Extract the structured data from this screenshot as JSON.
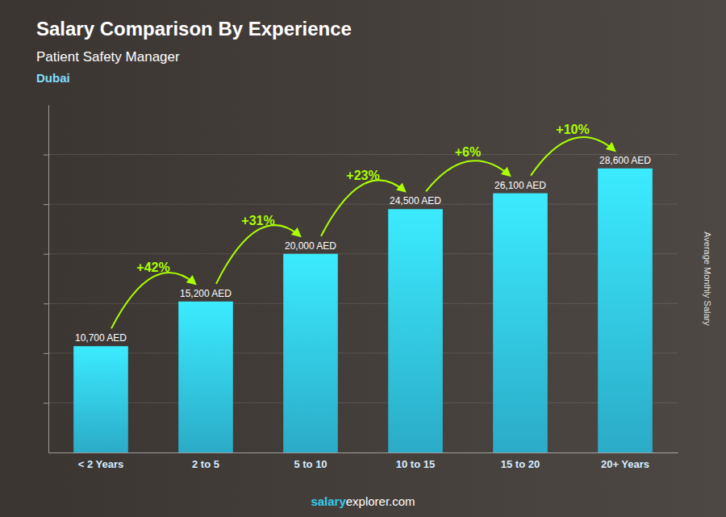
{
  "chart_data": {
    "type": "bar",
    "title": "Salary Comparison By Experience",
    "subtitle": "Patient Safety Manager",
    "city": "Dubai",
    "categories": [
      "< 2 Years",
      "2 to 5",
      "5 to 10",
      "10 to 15",
      "15 to 20",
      "20+ Years"
    ],
    "values": [
      10700,
      15200,
      20000,
      24500,
      26100,
      28600
    ],
    "value_labels": [
      "10,700 AED",
      "15,200 AED",
      "20,000 AED",
      "24,500 AED",
      "26,100 AED",
      "28,600 AED"
    ],
    "data_labels": true,
    "color": "#33ccee",
    "ylabel": "Average Monthly Salary",
    "ylim": [
      0,
      35000
    ],
    "yticks": [
      5000,
      10000,
      15000,
      20000,
      25000,
      30000
    ],
    "grid": true,
    "tick_labels": "x",
    "annotations": [
      {
        "text": "+42%",
        "color": "#aaff00"
      },
      {
        "text": "+31%",
        "color": "#aaff00"
      },
      {
        "text": "+23%",
        "color": "#aaff00"
      },
      {
        "text": "+6%",
        "color": "#aaff00"
      },
      {
        "text": "+10%",
        "color": "#aaff00"
      }
    ],
    "footer": [
      {
        "text": "salary",
        "color": "#33ccee"
      },
      {
        "text": "explorer.com",
        "color": "#ffffff"
      }
    ]
  }
}
